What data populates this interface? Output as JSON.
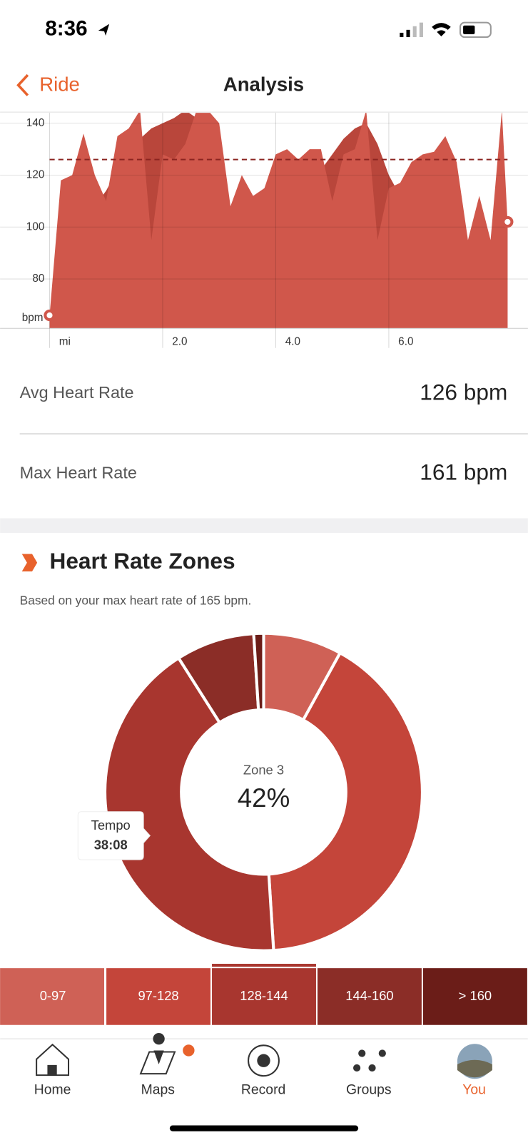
{
  "status_bar": {
    "time": "8:36"
  },
  "nav": {
    "back": "Ride",
    "title": "Analysis"
  },
  "chart_data": [
    {
      "type": "area",
      "x": [
        0,
        0.2,
        0.4,
        0.6,
        0.8,
        1.0,
        1.2,
        1.4,
        1.6,
        1.8,
        2.0,
        2.2,
        2.4,
        2.6,
        2.8,
        3.0,
        3.2,
        3.4,
        3.6,
        3.8,
        4.0,
        4.2,
        4.4,
        4.6,
        4.8,
        5.0,
        5.2,
        5.4,
        5.6,
        5.8,
        6.0,
        6.2,
        6.4,
        6.6,
        6.8,
        7.0,
        7.2,
        7.4,
        7.6,
        7.8,
        8.0,
        8.1
      ],
      "series": [
        {
          "color": "#d0574b",
          "values": [
            66,
            118,
            120,
            136,
            120,
            110,
            135,
            138,
            145,
            95,
            128,
            126,
            132,
            145,
            145,
            140,
            108,
            120,
            112,
            115,
            128,
            130,
            126,
            130,
            130,
            110,
            128,
            130,
            145,
            95,
            115,
            117,
            125,
            128,
            129,
            135,
            125,
            95,
            112,
            95,
            145,
            102
          ]
        },
        {
          "color": "#b9463b",
          "values": [
            66,
            80,
            92,
            100,
            108,
            114,
            122,
            128,
            134,
            138,
            140,
            142,
            145,
            142,
            135,
            110,
            85,
            68,
            64,
            64,
            72,
            88,
            102,
            114,
            122,
            128,
            134,
            138,
            140,
            132,
            120,
            112,
            116,
            124,
            126,
            120,
            100,
            80,
            72,
            78,
            95,
            102
          ]
        }
      ],
      "xlim": [
        0,
        8.1
      ],
      "ylim": [
        61,
        144
      ],
      "xticks": [
        {
          "value": 0,
          "label": "mi"
        },
        {
          "value": 2,
          "label": "2.0"
        },
        {
          "value": 4,
          "label": "4.0"
        },
        {
          "value": 6,
          "label": "6.0"
        }
      ],
      "yticks": [
        80,
        100,
        120,
        140
      ],
      "ylabel": "bpm",
      "avg_line": 126,
      "grid": true
    },
    {
      "type": "donut",
      "categories": [
        "0-97",
        "97-128",
        "128-144",
        "144-160",
        "> 160"
      ],
      "values": [
        8,
        41,
        42,
        8,
        1
      ],
      "colors": [
        "#cf6156",
        "#c4453a",
        "#a8362f",
        "#8b2d27",
        "#6b1d18"
      ],
      "value_labels": [
        null,
        null,
        "42%",
        null,
        null
      ],
      "center_label": "Zone 3"
    }
  ],
  "tooltip": {
    "title": "Tempo",
    "value": "38:08"
  },
  "stats": [
    {
      "label": "Avg Heart Rate",
      "value": "126 bpm"
    },
    {
      "label": "Max Heart Rate",
      "value": "161 bpm"
    }
  ],
  "zones": {
    "title": "Heart Rate Zones",
    "subtitle": "Based on your max heart rate of 165 bpm."
  },
  "tabs": [
    "Home",
    "Maps",
    "Record",
    "Groups",
    "You"
  ]
}
